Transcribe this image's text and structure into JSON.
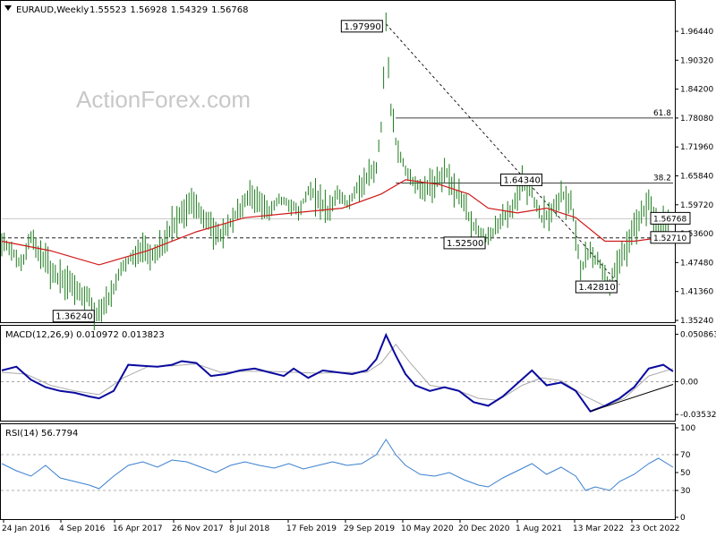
{
  "watermark": "ActionForex.com",
  "colors": {
    "bars": "#1e7b1e",
    "ma": "#d01818",
    "macd": "#0a0aa0",
    "signal": "#aaaaaa",
    "rsi": "#3a7fd0",
    "level": "#000000"
  },
  "chart_data": {
    "type": "line",
    "title": "EURAUD,Weekly",
    "ohlc": {
      "open": "1.55523",
      "high": "1.56928",
      "low": "1.54329",
      "close": "1.56768"
    },
    "price_ylim": [
      1.3524,
      1.9928
    ],
    "price_ticks": [
      "1.96440",
      "1.90320",
      "1.84200",
      "1.78080",
      "1.71960",
      "1.65840",
      "1.59720",
      "1.53600",
      "1.47480",
      "1.41360",
      "1.35240"
    ],
    "x_tick_labels": [
      "24 Jan 2016",
      "4 Sep 2016",
      "16 Apr 2017",
      "26 Nov 2017",
      "8 Jul 2018",
      "17 Feb 2019",
      "29 Sep 2019",
      "10 May 2020",
      "20 Dec 2020",
      "1 Aug 2021",
      "13 Mar 2022",
      "23 Oct 2022"
    ],
    "price_path": [
      [
        0,
        1.52
      ],
      [
        2,
        1.5
      ],
      [
        4,
        1.47
      ],
      [
        6,
        1.53
      ],
      [
        8,
        1.49
      ],
      [
        10,
        1.46
      ],
      [
        12,
        1.44
      ],
      [
        14,
        1.43
      ],
      [
        16,
        1.41
      ],
      [
        18,
        1.4
      ],
      [
        19,
        1.3624
      ],
      [
        21,
        1.38
      ],
      [
        23,
        1.42
      ],
      [
        25,
        1.47
      ],
      [
        27,
        1.49
      ],
      [
        29,
        1.5
      ],
      [
        31,
        1.49
      ],
      [
        33,
        1.51
      ],
      [
        35,
        1.55
      ],
      [
        37,
        1.58
      ],
      [
        39,
        1.6
      ],
      [
        41,
        1.58
      ],
      [
        43,
        1.55
      ],
      [
        45,
        1.53
      ],
      [
        47,
        1.56
      ],
      [
        49,
        1.59
      ],
      [
        51,
        1.62
      ],
      [
        53,
        1.6
      ],
      [
        55,
        1.58
      ],
      [
        57,
        1.61
      ],
      [
        59,
        1.6
      ],
      [
        61,
        1.58
      ],
      [
        63,
        1.63
      ],
      [
        65,
        1.61
      ],
      [
        67,
        1.58
      ],
      [
        69,
        1.62
      ],
      [
        71,
        1.6
      ],
      [
        73,
        1.63
      ],
      [
        75,
        1.65
      ],
      [
        77,
        1.68
      ],
      [
        78,
        1.76
      ],
      [
        79,
        1.9799
      ],
      [
        80,
        1.8
      ],
      [
        81,
        1.73
      ],
      [
        83,
        1.67
      ],
      [
        85,
        1.64
      ],
      [
        87,
        1.63
      ],
      [
        89,
        1.64
      ],
      [
        91,
        1.67
      ],
      [
        93,
        1.63
      ],
      [
        95,
        1.6
      ],
      [
        97,
        1.55
      ],
      [
        99,
        1.525
      ],
      [
        101,
        1.54
      ],
      [
        103,
        1.57
      ],
      [
        105,
        1.59
      ],
      [
        107,
        1.6434
      ],
      [
        109,
        1.62
      ],
      [
        111,
        1.57
      ],
      [
        113,
        1.58
      ],
      [
        115,
        1.62
      ],
      [
        117,
        1.6
      ],
      [
        118,
        1.54
      ],
      [
        119,
        1.46
      ],
      [
        121,
        1.5
      ],
      [
        123,
        1.47
      ],
      [
        125,
        1.4281
      ],
      [
        127,
        1.48
      ],
      [
        129,
        1.52
      ],
      [
        131,
        1.57
      ],
      [
        133,
        1.6
      ],
      [
        135,
        1.55
      ],
      [
        137,
        1.56768
      ]
    ],
    "ma_path": [
      [
        0,
        1.52
      ],
      [
        10,
        1.5
      ],
      [
        20,
        1.47
      ],
      [
        30,
        1.5
      ],
      [
        40,
        1.54
      ],
      [
        50,
        1.57
      ],
      [
        60,
        1.58
      ],
      [
        70,
        1.59
      ],
      [
        78,
        1.62
      ],
      [
        83,
        1.65
      ],
      [
        90,
        1.64
      ],
      [
        96,
        1.62
      ],
      [
        100,
        1.59
      ],
      [
        106,
        1.58
      ],
      [
        112,
        1.59
      ],
      [
        118,
        1.57
      ],
      [
        124,
        1.52
      ],
      [
        130,
        1.52
      ],
      [
        137,
        1.53
      ]
    ],
    "levels": [
      {
        "value": 1.7808,
        "style": "solid",
        "from": 81,
        "to": 138,
        "label": "61.8"
      },
      {
        "value": 1.6434,
        "style": "solid",
        "from": 81,
        "to": 138,
        "label": "38.2"
      },
      {
        "value": 1.56768,
        "style": "solid",
        "from": 0,
        "to": 138,
        "label": ""
      },
      {
        "value": 1.5271,
        "style": "dashed",
        "from": 0,
        "to": 138,
        "label": ""
      }
    ],
    "trend_lines": [
      {
        "from": [
          79,
          1.9799
        ],
        "to": [
          127,
          1.4281
        ],
        "style": "dotted"
      }
    ],
    "price_annotations": [
      {
        "text": "1.97990",
        "x": 79,
        "y": 1.9799
      },
      {
        "text": "1.64340",
        "x": 107,
        "y": 1.6434
      },
      {
        "text": "1.52500",
        "x": 99,
        "y": 1.525
      },
      {
        "text": "1.42810",
        "x": 125,
        "y": 1.4281
      },
      {
        "text": "1.36240",
        "x": 19,
        "y": 1.3624
      }
    ],
    "price_badges": [
      {
        "text": "1.56768",
        "value": 1.56768
      },
      {
        "text": "1.52710",
        "value": 1.5271
      }
    ],
    "macd": {
      "title": "MACD(12,26,9) 0.010972 0.013823",
      "ylim": [
        -0.04,
        0.058
      ],
      "ticks": [
        {
          "text": "0.050863",
          "value": 0.050863
        },
        {
          "text": "0.00",
          "value": 0.0
        },
        {
          "text": "-0.035322",
          "value": -0.035322
        }
      ],
      "macd_path": [
        [
          0,
          0.012
        ],
        [
          3,
          0.016
        ],
        [
          6,
          0.002
        ],
        [
          9,
          -0.006
        ],
        [
          12,
          -0.01
        ],
        [
          15,
          -0.012
        ],
        [
          18,
          -0.016
        ],
        [
          20,
          -0.018
        ],
        [
          23,
          -0.01
        ],
        [
          26,
          0.018
        ],
        [
          29,
          0.017
        ],
        [
          32,
          0.016
        ],
        [
          35,
          0.018
        ],
        [
          37,
          0.022
        ],
        [
          40,
          0.02
        ],
        [
          43,
          0.006
        ],
        [
          46,
          0.008
        ],
        [
          49,
          0.012
        ],
        [
          52,
          0.014
        ],
        [
          55,
          0.01
        ],
        [
          58,
          0.006
        ],
        [
          60,
          0.014
        ],
        [
          63,
          0.004
        ],
        [
          66,
          0.012
        ],
        [
          69,
          0.01
        ],
        [
          72,
          0.008
        ],
        [
          75,
          0.012
        ],
        [
          77,
          0.024
        ],
        [
          79,
          0.05
        ],
        [
          81,
          0.028
        ],
        [
          83,
          0.008
        ],
        [
          85,
          -0.004
        ],
        [
          88,
          -0.01
        ],
        [
          91,
          -0.006
        ],
        [
          94,
          -0.01
        ],
        [
          97,
          -0.022
        ],
        [
          100,
          -0.026
        ],
        [
          103,
          -0.016
        ],
        [
          106,
          -0.002
        ],
        [
          109,
          0.012
        ],
        [
          112,
          -0.004
        ],
        [
          115,
          -0.001
        ],
        [
          118,
          -0.01
        ],
        [
          121,
          -0.032
        ],
        [
          124,
          -0.026
        ],
        [
          127,
          -0.018
        ],
        [
          130,
          -0.006
        ],
        [
          133,
          0.014
        ],
        [
          136,
          0.018
        ],
        [
          138,
          0.011
        ]
      ],
      "signal_path": [
        [
          0,
          0.01
        ],
        [
          5,
          0.008
        ],
        [
          10,
          -0.004
        ],
        [
          15,
          -0.01
        ],
        [
          20,
          -0.014
        ],
        [
          25,
          0.004
        ],
        [
          30,
          0.016
        ],
        [
          35,
          0.017
        ],
        [
          40,
          0.019
        ],
        [
          45,
          0.01
        ],
        [
          50,
          0.011
        ],
        [
          55,
          0.011
        ],
        [
          60,
          0.01
        ],
        [
          65,
          0.009
        ],
        [
          70,
          0.01
        ],
        [
          75,
          0.01
        ],
        [
          78,
          0.02
        ],
        [
          81,
          0.04
        ],
        [
          84,
          0.02
        ],
        [
          88,
          -0.004
        ],
        [
          93,
          -0.008
        ],
        [
          98,
          -0.018
        ],
        [
          102,
          -0.02
        ],
        [
          107,
          -0.004
        ],
        [
          111,
          0.004
        ],
        [
          115,
          0.001
        ],
        [
          120,
          -0.016
        ],
        [
          124,
          -0.026
        ],
        [
          128,
          -0.018
        ],
        [
          133,
          0.006
        ],
        [
          138,
          0.014
        ]
      ],
      "trend_line": {
        "from": [
          121,
          -0.032
        ],
        "to": [
          138,
          -0.003
        ]
      }
    },
    "rsi": {
      "title": "RSI(14) 56.7794",
      "ylim": [
        0,
        100
      ],
      "ticks": [
        "100",
        "70",
        "50",
        "30",
        "0"
      ],
      "path": [
        [
          0,
          60
        ],
        [
          3,
          52
        ],
        [
          6,
          46
        ],
        [
          9,
          58
        ],
        [
          12,
          44
        ],
        [
          15,
          40
        ],
        [
          18,
          36
        ],
        [
          20,
          32
        ],
        [
          23,
          46
        ],
        [
          26,
          58
        ],
        [
          29,
          62
        ],
        [
          32,
          56
        ],
        [
          35,
          64
        ],
        [
          38,
          62
        ],
        [
          41,
          56
        ],
        [
          44,
          50
        ],
        [
          47,
          58
        ],
        [
          50,
          62
        ],
        [
          53,
          58
        ],
        [
          56,
          55
        ],
        [
          59,
          60
        ],
        [
          62,
          54
        ],
        [
          65,
          58
        ],
        [
          68,
          62
        ],
        [
          71,
          58
        ],
        [
          74,
          60
        ],
        [
          77,
          70
        ],
        [
          79,
          87
        ],
        [
          81,
          70
        ],
        [
          83,
          58
        ],
        [
          86,
          48
        ],
        [
          89,
          46
        ],
        [
          92,
          50
        ],
        [
          95,
          42
        ],
        [
          98,
          36
        ],
        [
          100,
          34
        ],
        [
          103,
          44
        ],
        [
          106,
          52
        ],
        [
          109,
          60
        ],
        [
          112,
          48
        ],
        [
          115,
          56
        ],
        [
          118,
          46
        ],
        [
          120,
          30
        ],
        [
          122,
          34
        ],
        [
          125,
          30
        ],
        [
          127,
          40
        ],
        [
          130,
          48
        ],
        [
          133,
          60
        ],
        [
          135,
          66
        ],
        [
          138,
          56
        ]
      ]
    }
  }
}
